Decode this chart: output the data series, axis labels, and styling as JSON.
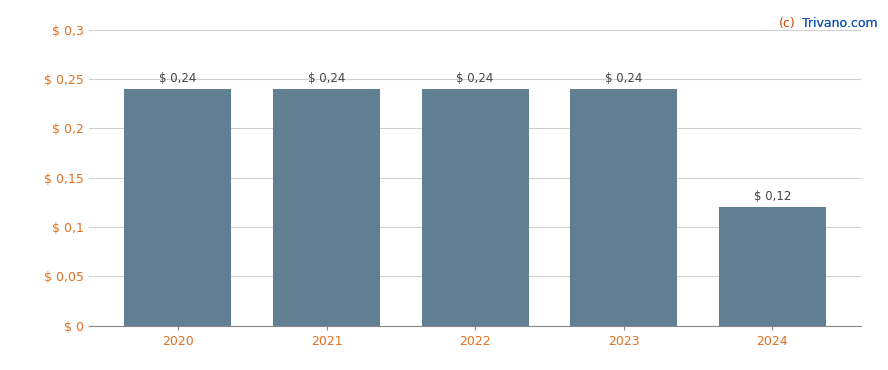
{
  "categories": [
    "2020",
    "2021",
    "2022",
    "2023",
    "2024"
  ],
  "values": [
    0.24,
    0.24,
    0.24,
    0.24,
    0.12
  ],
  "bar_color": "#607f92",
  "bar_labels": [
    "$ 0,24",
    "$ 0,24",
    "$ 0,24",
    "$ 0,24",
    "$ 0,12"
  ],
  "ylim": [
    0,
    0.3
  ],
  "yticks": [
    0,
    0.05,
    0.1,
    0.15,
    0.2,
    0.25,
    0.3
  ],
  "ytick_labels": [
    "$ 0",
    "$ 0,05",
    "$ 0,1",
    "$ 0,15",
    "$ 0,2",
    "$ 0,25",
    "$ 0,3"
  ],
  "background_color": "#ffffff",
  "grid_color": "#d0d0d0",
  "watermark_c": "(c)",
  "watermark_rest": " Trivano.com",
  "tick_color": "#e07020",
  "label_color": "#444444",
  "bar_label_fontsize": 8.5,
  "tick_fontsize": 9,
  "watermark_fontsize": 9,
  "watermark_color_c": "#cc4400",
  "watermark_color_rest": "#1155bb"
}
